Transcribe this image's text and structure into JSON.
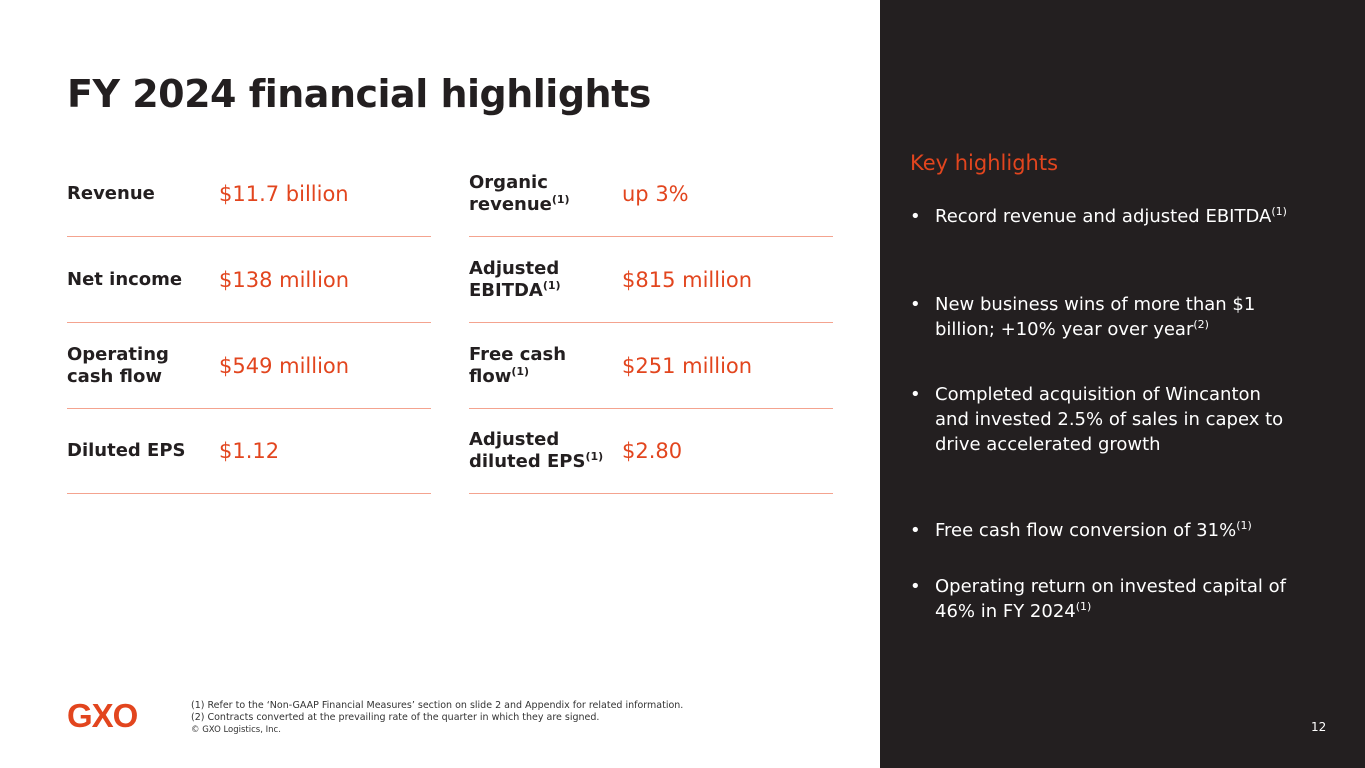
{
  "title": "FY 2024 financial highlights",
  "metrics_left": [
    {
      "label": "Revenue",
      "value": "$11.7 billion"
    },
    {
      "label": "Net income",
      "value": "$138 million"
    },
    {
      "label": "Operating cash flow",
      "value": "$549 million"
    },
    {
      "label": "Diluted EPS",
      "value": "$1.12"
    }
  ],
  "metrics_right": [
    {
      "label": "Organic revenue",
      "sup": "(1)",
      "value": "up 3%"
    },
    {
      "label": "Adjusted EBITDA",
      "sup": "(1)",
      "value": "$815 million"
    },
    {
      "label": "Free cash flow",
      "sup": "(1)",
      "value": "$251 million"
    },
    {
      "label": "Adjusted diluted EPS",
      "sup": "(1)",
      "value": "$2.80"
    }
  ],
  "highlights": {
    "heading": "Key highlights",
    "bullet_char": "•",
    "items": [
      {
        "text": "Record revenue and adjusted EBITDA",
        "sup": "(1)"
      },
      {
        "text": "New business wins of more than $1 billion; +10% year over year",
        "sup": "(2)"
      },
      {
        "text": "Completed acquisition of Wincanton and invested 2.5% of sales in capex to drive accelerated growth",
        "sup": ""
      },
      {
        "text": "Free cash flow conversion of 31%",
        "sup": "(1)"
      },
      {
        "text": "Operating return on invested capital of 46% in FY 2024",
        "sup": "(1)"
      }
    ]
  },
  "logo": "GXO",
  "footnotes": [
    "(1) Refer to the ‘Non-GAAP Financial Measures’ section on slide 2 and Appendix for related information.",
    "(2) Contracts converted at the prevailing rate of the quarter in which they are signed.",
    "© GXO Logistics, Inc."
  ],
  "page_number": "12",
  "colors": {
    "accent": "#e2451e",
    "panel": "#231f20",
    "divider": "#f4a38f"
  }
}
